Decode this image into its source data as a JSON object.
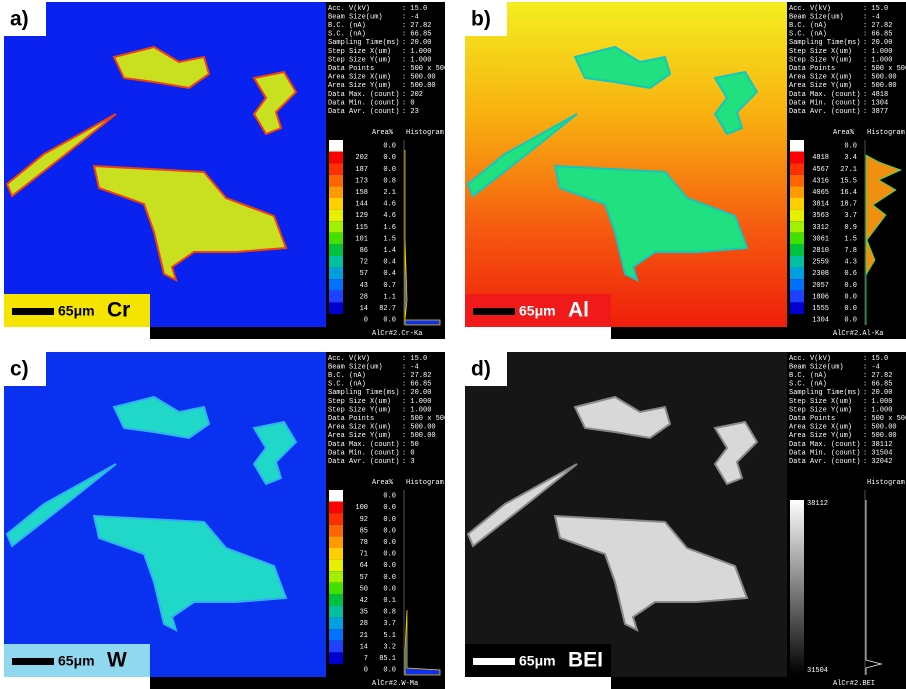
{
  "panels": [
    {
      "label": "a)",
      "scale": "65μm",
      "element": "Cr",
      "footer": "AlCr#2.Cr-Ka",
      "params": [
        [
          "Acc. V(kV)",
          ": 15.0"
        ],
        [
          "Beam Size(um)",
          ": -4"
        ],
        [
          "B.C. (nA)",
          ": 27.82"
        ],
        [
          "S.C. (nA)",
          ": 66.85"
        ],
        [
          "Sampling Time(ms)",
          ": 20.00"
        ],
        [
          "Step Size X(um)",
          ": 1.000"
        ],
        [
          "Step Size Y(um)",
          ": 1.000"
        ],
        [
          "Data Points",
          ": 500 x 500"
        ],
        [
          "Area Size X(um)",
          ": 500.00"
        ],
        [
          "Area Size Y(um)",
          ": 500.00"
        ],
        [
          "Data Max. (count)",
          ": 202"
        ],
        [
          "Data Min. (count)",
          ": 0"
        ],
        [
          "Data Avr. (count)",
          ": 23"
        ]
      ],
      "legend_header": [
        "Area%",
        "Histogram"
      ],
      "levels": [
        [
          null,
          "0.0"
        ],
        [
          "202",
          "0.0"
        ],
        [
          "187",
          "0.0"
        ],
        [
          "173",
          "0.8"
        ],
        [
          "158",
          "2.1"
        ],
        [
          "144",
          "4.6"
        ],
        [
          "129",
          "4.6"
        ],
        [
          "115",
          "1.6"
        ],
        [
          "101",
          "1.5"
        ],
        [
          "86",
          "1.4"
        ],
        [
          "72",
          "0.4"
        ],
        [
          "57",
          "0.4"
        ],
        [
          "43",
          "0.7"
        ],
        [
          "28",
          "1.1"
        ],
        [
          "14",
          "82.7"
        ],
        [
          "0",
          "0.0"
        ]
      ]
    },
    {
      "label": "b)",
      "scale": "65μm",
      "element": "Al",
      "footer": "AlCr#2.Al-Ka",
      "params": [
        [
          "Acc. V(kV)",
          ": 15.0"
        ],
        [
          "Beam Size(um)",
          ": -4"
        ],
        [
          "B.C. (nA)",
          ": 27.82"
        ],
        [
          "S.C. (nA)",
          ": 66.85"
        ],
        [
          "Sampling Time(ms)",
          ": 20.00"
        ],
        [
          "Step Size X(um)",
          ": 1.000"
        ],
        [
          "Step Size Y(um)",
          ": 1.000"
        ],
        [
          "Data Points",
          ": 500 x 500"
        ],
        [
          "Area Size X(um)",
          ": 500.00"
        ],
        [
          "Area Size Y(um)",
          ": 500.00"
        ],
        [
          "Data Max. (count)",
          ": 4818"
        ],
        [
          "Data Min. (count)",
          ": 1304"
        ],
        [
          "Data Avr. (count)",
          ": 3877"
        ]
      ],
      "legend_header": [
        "Area%",
        "Histogram"
      ],
      "levels": [
        [
          null,
          "0.0"
        ],
        [
          "4818",
          "3.4"
        ],
        [
          "4567",
          "27.1"
        ],
        [
          "4316",
          "15.5"
        ],
        [
          "4065",
          "16.4"
        ],
        [
          "3814",
          "18.7"
        ],
        [
          "3563",
          "3.7"
        ],
        [
          "3312",
          "0.9"
        ],
        [
          "3061",
          "1.5"
        ],
        [
          "2810",
          "7.8"
        ],
        [
          "2559",
          "4.3"
        ],
        [
          "2308",
          "0.6"
        ],
        [
          "2057",
          "0.0"
        ],
        [
          "1806",
          "0.0"
        ],
        [
          "1555",
          "0.0"
        ],
        [
          "1304",
          "0.0"
        ]
      ]
    },
    {
      "label": "c)",
      "scale": "65μm",
      "element": "W",
      "footer": "AlCr#2.W-Ma",
      "params": [
        [
          "Acc. V(kV)",
          ": 15.0"
        ],
        [
          "Beam Size(um)",
          ": -4"
        ],
        [
          "B.C. (nA)",
          ": 27.82"
        ],
        [
          "S.C. (nA)",
          ": 66.85"
        ],
        [
          "Sampling Time(ms)",
          ": 20.00"
        ],
        [
          "Step Size X(um)",
          ": 1.000"
        ],
        [
          "Step Size Y(um)",
          ": 1.000"
        ],
        [
          "Data Points",
          ": 500 x 500"
        ],
        [
          "Area Size X(um)",
          ": 500.00"
        ],
        [
          "Area Size Y(um)",
          ": 500.00"
        ],
        [
          "Data Max. (count)",
          ": 50"
        ],
        [
          "Data Min. (count)",
          ": 0"
        ],
        [
          "Data Avr. (count)",
          ": 3"
        ]
      ],
      "legend_header": [
        "Area%",
        "Histogram"
      ],
      "levels": [
        [
          null,
          "0.0"
        ],
        [
          "100",
          "0.0"
        ],
        [
          "92",
          "0.0"
        ],
        [
          "85",
          "0.0"
        ],
        [
          "78",
          "0.0"
        ],
        [
          "71",
          "0.0"
        ],
        [
          "64",
          "0.0"
        ],
        [
          "57",
          "0.0"
        ],
        [
          "50",
          "0.0"
        ],
        [
          "42",
          "0.1"
        ],
        [
          "35",
          "0.8"
        ],
        [
          "28",
          "3.7"
        ],
        [
          "21",
          "5.1"
        ],
        [
          "14",
          "3.2"
        ],
        [
          "7",
          "85.1"
        ],
        [
          "0",
          "0.0"
        ]
      ]
    },
    {
      "label": "d)",
      "scale": "65μm",
      "element": "BEI",
      "footer": "AlCr#2.BEI",
      "params": [
        [
          "Acc. V(kV)",
          ": 15.0"
        ],
        [
          "Beam Size(um)",
          ": -4"
        ],
        [
          "B.C. (nA)",
          ": 27.82"
        ],
        [
          "S.C. (nA)",
          ": 66.85"
        ],
        [
          "Sampling Time(ms)",
          ": 20.00"
        ],
        [
          "Step Size X(um)",
          ": 1.000"
        ],
        [
          "Step Size Y(um)",
          ": 1.000"
        ],
        [
          "Data Points",
          ": 500 x 500"
        ],
        [
          "Area Size X(um)",
          ": 500.00"
        ],
        [
          "Area Size Y(um)",
          ": 500.00"
        ],
        [
          "Data Max. (count)",
          ": 38112"
        ],
        [
          "Data Min. (count)",
          ": 31504"
        ],
        [
          "Data Avr. (count)",
          ": 32042"
        ]
      ],
      "legend_header": [
        null,
        "Histogram"
      ],
      "gray_range": [
        "38112",
        "31504"
      ]
    }
  ]
}
